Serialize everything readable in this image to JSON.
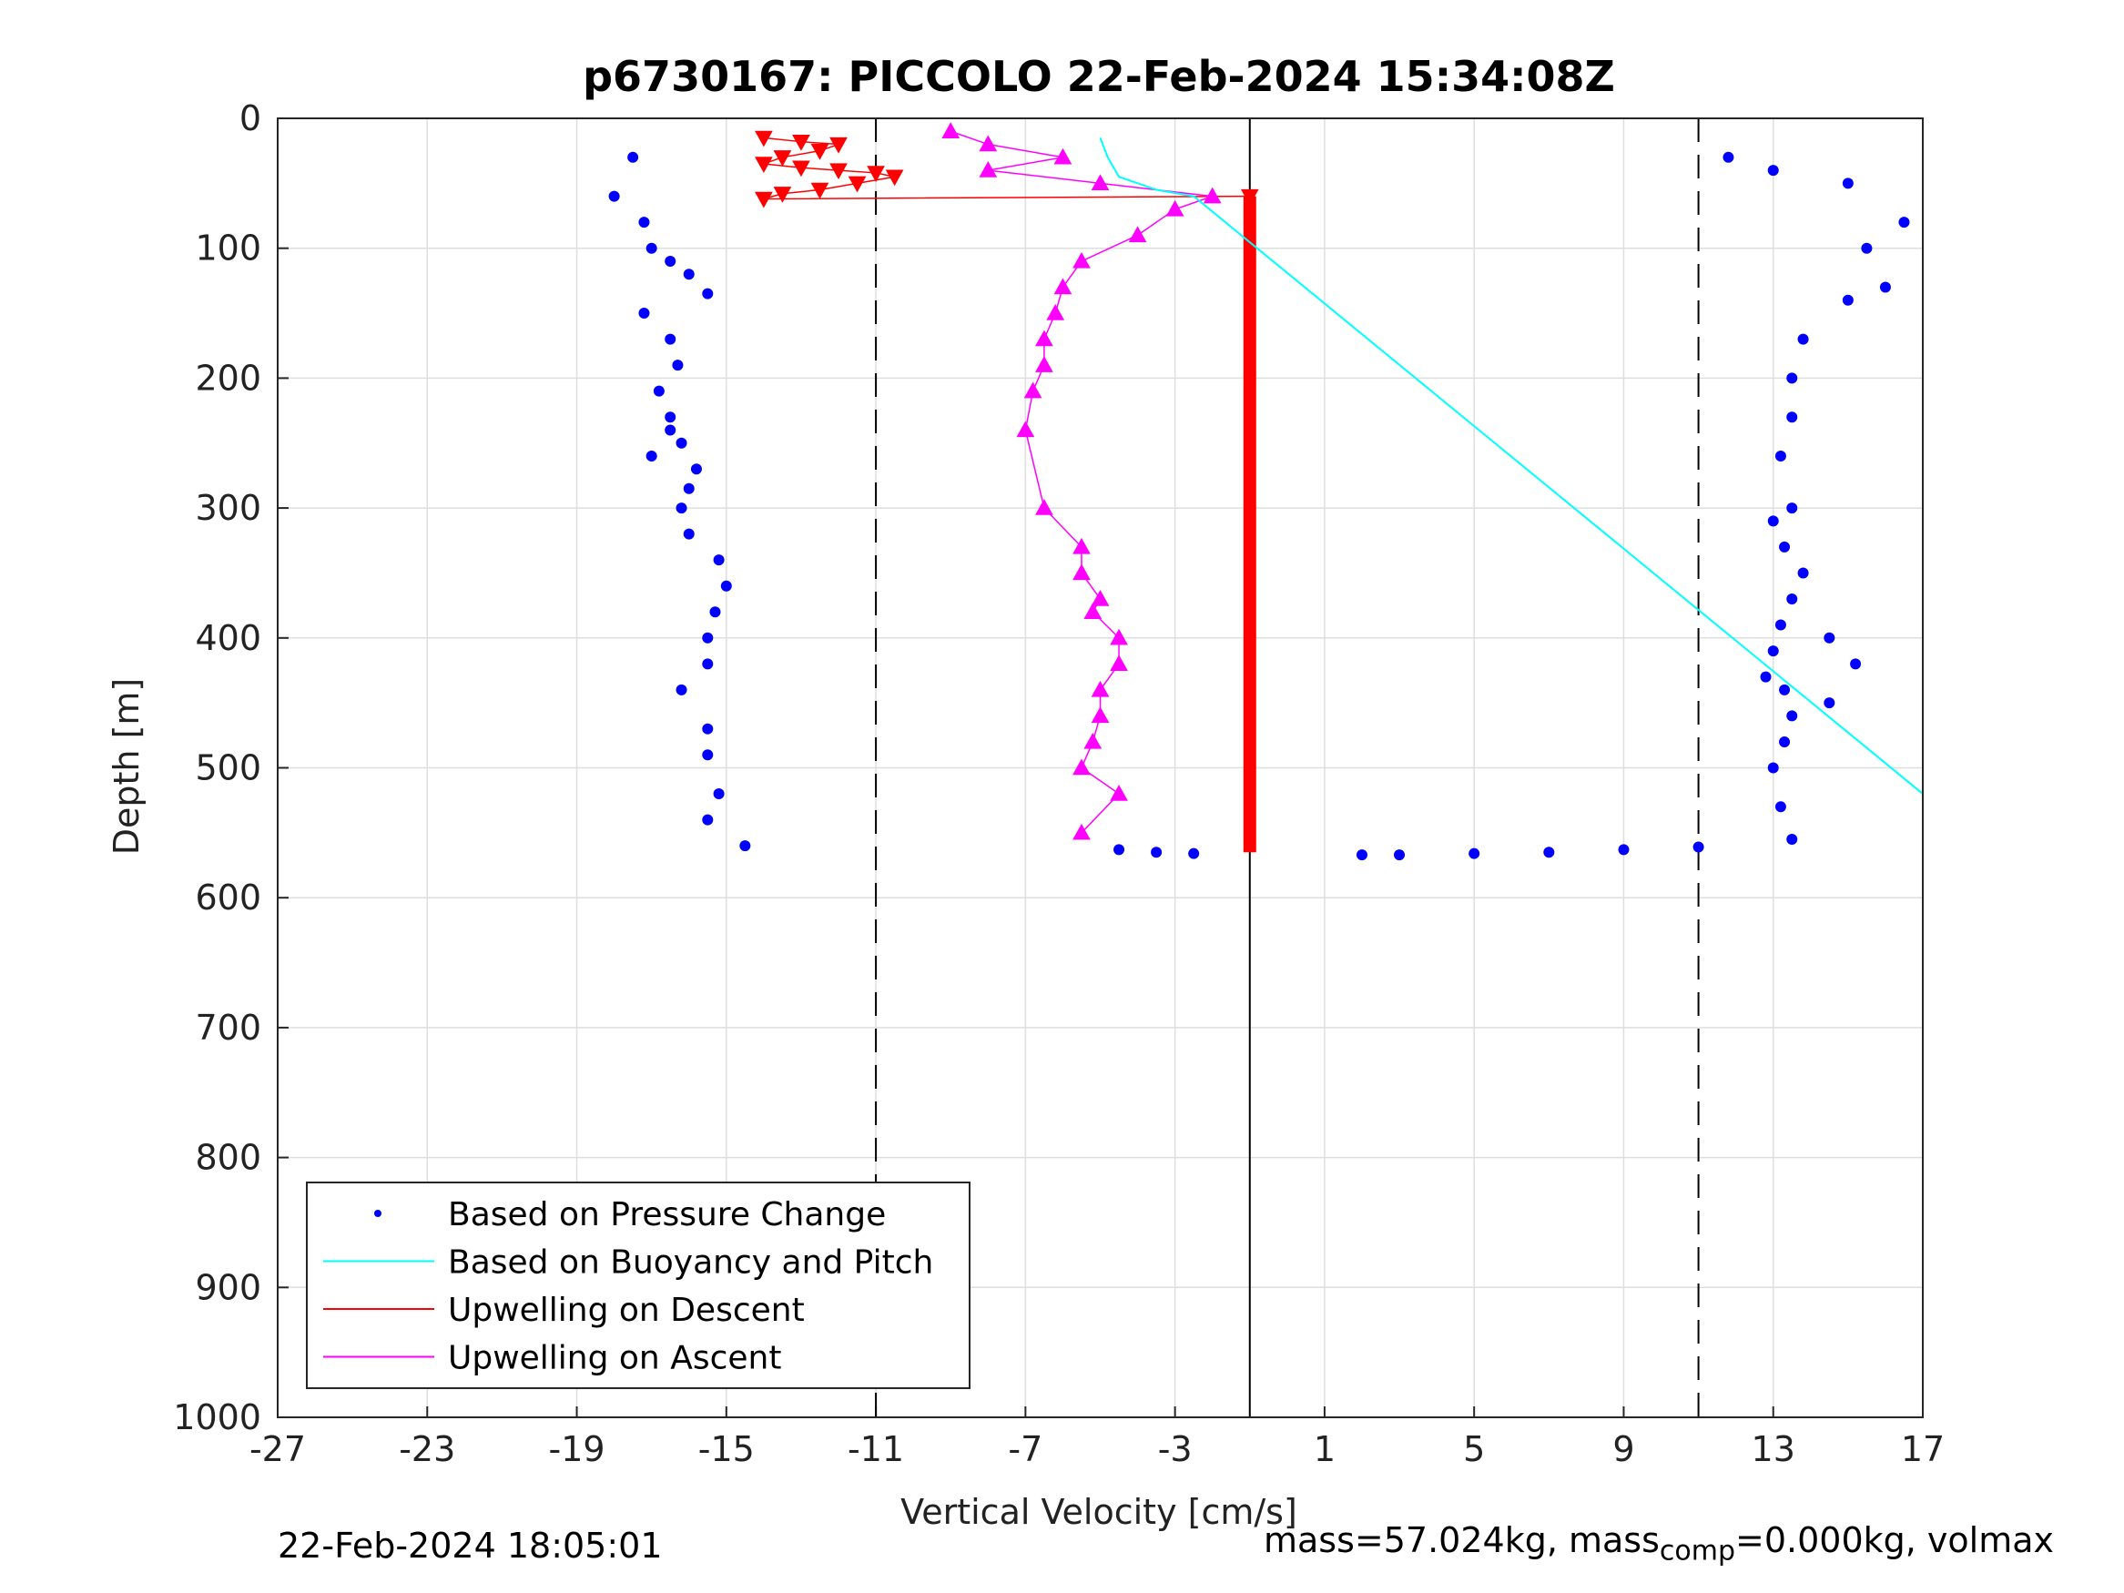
{
  "chart_data": {
    "type": "scatter",
    "title": "p6730167: PICCOLO 22-Feb-2024 15:34:08Z",
    "xlabel": "Vertical Velocity [cm/s]",
    "ylabel": "Depth [m]",
    "xlim": [
      -27,
      17
    ],
    "ylim": [
      0,
      1000
    ],
    "y_reversed": true,
    "x_ticks": [
      "-27",
      "-23",
      "-19",
      "-15",
      "-11",
      "-7",
      "-3",
      "1",
      "5",
      "9",
      "13",
      "17"
    ],
    "y_ticks": [
      "0",
      "100",
      "200",
      "300",
      "400",
      "500",
      "600",
      "700",
      "800",
      "900",
      "1000"
    ],
    "grid": true,
    "legend": {
      "placement": "bottom-left",
      "entries": [
        "Based on Pressure Change",
        "Based on Buoyancy and Pitch",
        "Upwelling on Descent",
        "Upwelling on Ascent"
      ]
    },
    "reference_lines": {
      "dashed_x": [
        -11,
        11
      ],
      "solid_x": [
        -1
      ]
    },
    "series": [
      {
        "name": "Based on Pressure Change",
        "color": "#0000ff",
        "marker": "dot",
        "descent_x": [
          -17.5,
          -18,
          -17.2,
          -17,
          -16.5,
          -16,
          -15.5,
          -17.2,
          -16.5,
          -16.3,
          -16.8,
          -16.5,
          -16.2,
          -15.8,
          -16,
          -16.2,
          -17,
          -16.5,
          -16,
          -15.2,
          -15.0,
          -15.3,
          -15.5,
          -15.5,
          -16.2,
          -15.5,
          -15.5,
          -15.2,
          -15.5,
          -14.5
        ],
        "descent_y": [
          30,
          60,
          80,
          100,
          110,
          120,
          135,
          150,
          170,
          190,
          210,
          230,
          250,
          270,
          285,
          300,
          260,
          240,
          320,
          340,
          360,
          380,
          400,
          420,
          440,
          470,
          490,
          520,
          540,
          560
        ],
        "ascent_x": [
          13.5,
          13.2,
          13.0,
          13.3,
          13.5,
          13.3,
          12.8,
          13.0,
          13.2,
          13.5,
          13.8,
          13.3,
          13.0,
          14.5,
          15.2,
          14.5,
          13.5,
          13.2,
          13.5,
          13.5,
          13.8,
          15.0,
          16.0,
          15.5,
          16.5,
          15.0,
          13.0,
          11.8
        ],
        "ascent_y": [
          555,
          530,
          500,
          480,
          460,
          440,
          430,
          410,
          390,
          370,
          350,
          330,
          310,
          400,
          420,
          450,
          300,
          260,
          230,
          200,
          170,
          140,
          130,
          100,
          80,
          50,
          40,
          30
        ],
        "bottom_x": [
          -4.5,
          -3.5,
          -2.5,
          2,
          3,
          5,
          7,
          9,
          11
        ],
        "bottom_y": [
          563,
          565,
          566,
          567,
          567,
          566,
          565,
          563,
          561
        ]
      },
      {
        "name": "Based on Buoyancy and Pitch",
        "color": "#00ffff",
        "marker": "line",
        "x": [
          -5,
          -4.8,
          -4.5,
          -4,
          -3.5,
          -2.5,
          17
        ],
        "y": [
          15,
          30,
          45,
          50,
          55,
          60,
          520
        ]
      },
      {
        "name": "Upwelling on Descent",
        "color": "#ff0000",
        "marker": "triangle-down",
        "x": [
          -14,
          -13,
          -12,
          -12.5,
          -13.5,
          -14,
          -13,
          -12,
          -11,
          -10.5,
          -11.5,
          -12.5,
          -13.5,
          -14,
          -1
        ],
        "y": [
          15,
          18,
          20,
          25,
          30,
          35,
          38,
          40,
          42,
          45,
          50,
          55,
          58,
          62,
          60
        ]
      },
      {
        "name": "Upwelling on Ascent",
        "color": "#ff00ff",
        "marker": "triangle-up",
        "x": [
          -9,
          -8,
          -6,
          -8,
          -5,
          -2,
          -3,
          -4,
          -5.5,
          -6,
          -6.2,
          -6.5,
          -6.5,
          -6.8,
          -7,
          -6.5,
          -5.5,
          -5.5,
          -5,
          -5.2,
          -4.5,
          -4.5,
          -5,
          -5,
          -5.2,
          -5.5,
          -4.5,
          -5.5
        ],
        "y": [
          10,
          20,
          30,
          40,
          50,
          60,
          70,
          90,
          110,
          130,
          150,
          170,
          190,
          210,
          240,
          300,
          330,
          350,
          370,
          380,
          400,
          420,
          440,
          460,
          480,
          500,
          520,
          550
        ]
      }
    ]
  },
  "footer": {
    "timestamp": "22-Feb-2024 18:05:01",
    "mass_prefix": "mass=57.024kg, mass",
    "mass_subscript": "comp",
    "mass_suffix": "=0.000kg, volmax"
  }
}
